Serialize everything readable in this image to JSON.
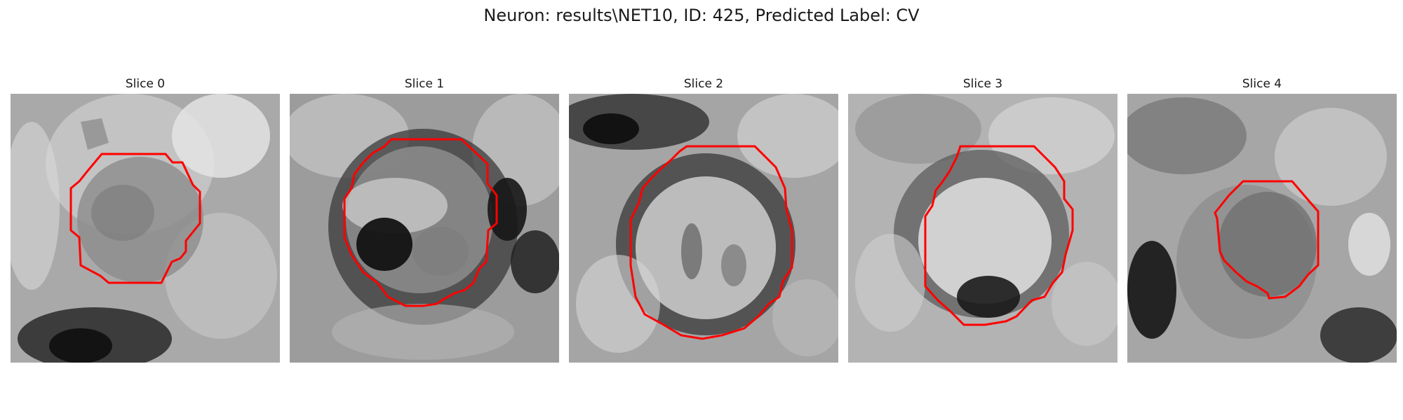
{
  "figure": {
    "title": "Neuron: results\\NET10, ID: 425, Predicted Label: CV"
  },
  "panels": [
    {
      "title": "Slice 0"
    },
    {
      "title": "Slice 1"
    },
    {
      "title": "Slice 2"
    },
    {
      "title": "Slice 3"
    },
    {
      "title": "Slice 4"
    }
  ],
  "colors": {
    "contour": "#ff0000",
    "background": "#ffffff"
  }
}
